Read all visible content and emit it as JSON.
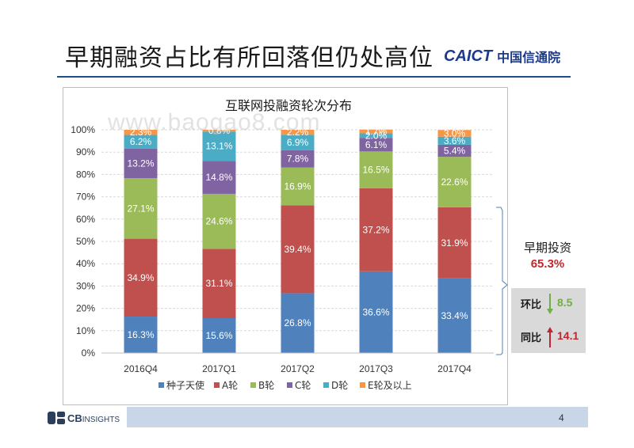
{
  "slide": {
    "title": "早期融资占比有所回落但仍处高位",
    "brand_latin": "CAICT",
    "brand_chinese": "中国信通院",
    "watermark": "www.baogao8.com",
    "page_number": "4",
    "footer_brand_bold": "CB",
    "footer_brand_rest": "INSIGHTS"
  },
  "annotation": {
    "label": "早期投资",
    "value": "65.3%",
    "qoq_label": "环比",
    "qoq_value": "8.5",
    "qoq_direction": "down",
    "yoy_label": "同比",
    "yoy_value": "14.1",
    "yoy_direction": "up",
    "down_color": "#70ad47",
    "up_color": "#c0272d"
  },
  "chart_data": {
    "type": "bar",
    "stacked": true,
    "title": "互联网投融资轮次分布",
    "categories": [
      "2016Q4",
      "2017Q1",
      "2017Q2",
      "2017Q3",
      "2017Q4"
    ],
    "ylim": [
      0,
      100
    ],
    "yticks": [
      "0%",
      "10%",
      "20%",
      "30%",
      "40%",
      "50%",
      "60%",
      "70%",
      "80%",
      "90%",
      "100%"
    ],
    "legend_position": "bottom",
    "gridlines": true,
    "series": [
      {
        "name": "种子天使",
        "color": "#4f81bd",
        "values": [
          16.3,
          15.6,
          26.8,
          36.6,
          33.4
        ],
        "labels": [
          "16.3%",
          "15.6%",
          "26.8%",
          "36.6%",
          "33.4%"
        ]
      },
      {
        "name": "A轮",
        "color": "#c0504d",
        "values": [
          34.9,
          31.1,
          39.4,
          37.2,
          31.9
        ],
        "labels": [
          "34.9%",
          "31.1%",
          "39.4%",
          "37.2%",
          "31.9%"
        ]
      },
      {
        "name": "B轮",
        "color": "#9bbb59",
        "values": [
          27.1,
          24.6,
          16.9,
          16.5,
          22.6
        ],
        "labels": [
          "27.1%",
          "24.6%",
          "16.9%",
          "16.5%",
          "22.6%"
        ]
      },
      {
        "name": "C轮",
        "color": "#8064a2",
        "values": [
          13.2,
          14.8,
          7.8,
          6.1,
          5.4
        ],
        "labels": [
          "13.2%",
          "14.8%",
          "7.8%",
          "6.1%",
          "5.4%"
        ]
      },
      {
        "name": "D轮",
        "color": "#4bacc6",
        "values": [
          6.2,
          13.1,
          6.9,
          2.0,
          3.6
        ],
        "labels": [
          "6.2%",
          "13.1%",
          "6.9%",
          "2.0%",
          "3.6%"
        ]
      },
      {
        "name": "E轮及以上",
        "color": "#f79646",
        "values": [
          2.3,
          0.8,
          2.2,
          1.7,
          3.0
        ],
        "labels": [
          "2.3%",
          "0.8%",
          "2.2%",
          "1.7%",
          "3.0%"
        ]
      }
    ]
  }
}
